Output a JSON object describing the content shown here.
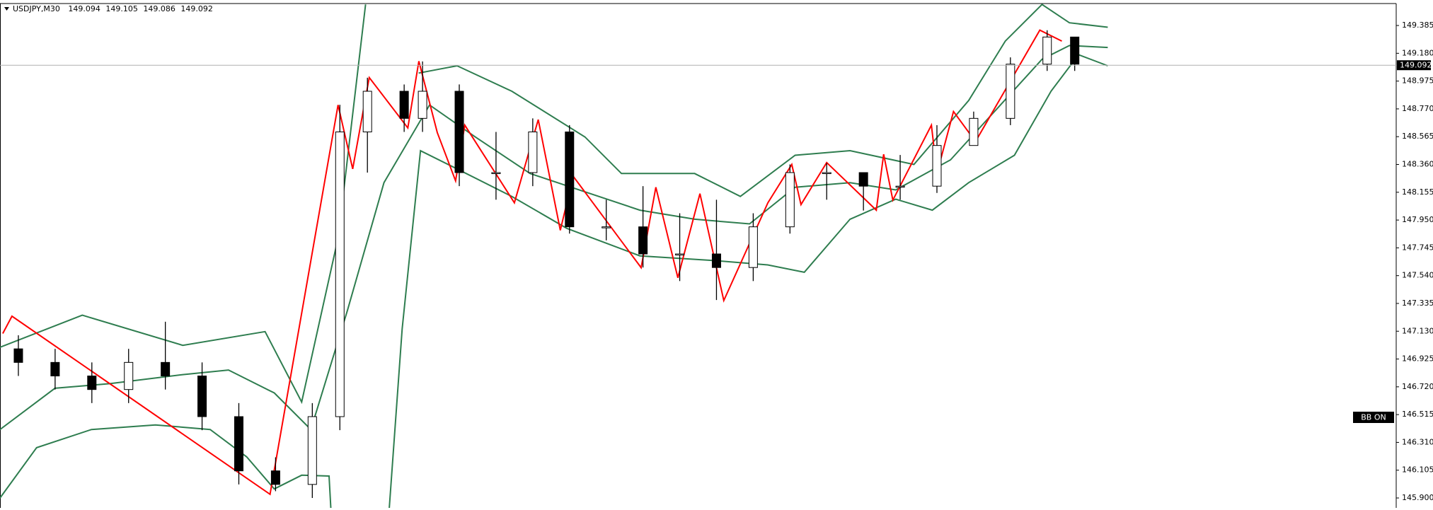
{
  "chart_data": {
    "type": "candlestick",
    "title": "USDJPY,M30",
    "ohlc_header": [
      149.094,
      149.105,
      149.086,
      149.092
    ],
    "current_price": 149.092,
    "annotation": "BB ON",
    "xlim": [
      0,
      76
    ],
    "ylim": [
      145.827,
      149.547
    ],
    "yticks": [
      149.385,
      {
        "value": 149.18,
        "label": "149.180"
      },
      148.975,
      {
        "value": 148.77,
        "label": "148.770"
      },
      148.565,
      {
        "value": 148.36,
        "label": "148.360"
      },
      148.155,
      {
        "value": 147.95,
        "label": "147.950"
      },
      147.745,
      {
        "value": 147.54,
        "label": "147.540"
      },
      147.335,
      {
        "value": 147.13,
        "label": "147.130"
      },
      146.925,
      {
        "value": 146.72,
        "label": "146.720"
      },
      146.515,
      {
        "value": 146.31,
        "label": "146.310"
      },
      146.105,
      {
        "value": 145.9,
        "label": "145.900"
      }
    ],
    "candles": {
      "x": [
        1,
        3,
        5,
        7,
        9,
        11,
        13,
        15,
        17,
        18.5,
        20,
        22,
        23,
        25,
        27,
        29,
        31,
        33,
        35,
        37,
        39,
        41,
        43,
        45,
        47,
        49,
        51,
        53,
        55,
        57,
        58.5
      ],
      "open": [
        147.0,
        146.9,
        146.8,
        146.7,
        146.9,
        146.8,
        146.5,
        146.1,
        146.0,
        146.5,
        148.6,
        148.9,
        148.7,
        148.9,
        148.3,
        148.3,
        148.6,
        147.9,
        147.9,
        147.7,
        147.7,
        147.6,
        147.9,
        148.3,
        148.3,
        148.2,
        148.2,
        148.5,
        148.7,
        149.1,
        149.3
      ],
      "high": [
        147.1,
        147.0,
        146.9,
        147.0,
        147.2,
        146.9,
        146.6,
        146.2,
        146.6,
        148.8,
        149.0,
        148.95,
        149.12,
        148.95,
        148.6,
        148.7,
        148.65,
        148.1,
        148.2,
        148.0,
        148.1,
        148.0,
        148.36,
        148.37,
        148.3,
        148.43,
        148.65,
        148.75,
        149.15,
        149.35,
        149.3
      ],
      "low": [
        146.8,
        146.7,
        146.6,
        146.6,
        146.7,
        146.4,
        146.0,
        145.95,
        145.9,
        146.4,
        148.3,
        148.6,
        148.6,
        148.2,
        148.1,
        148.2,
        147.85,
        147.8,
        147.6,
        147.5,
        147.36,
        147.5,
        147.85,
        148.1,
        148.02,
        148.1,
        148.15,
        148.5,
        148.65,
        149.05,
        149.05
      ],
      "close": [
        146.9,
        146.8,
        146.7,
        146.9,
        146.8,
        146.5,
        146.1,
        146.0,
        146.5,
        148.6,
        148.9,
        148.7,
        148.9,
        148.3,
        148.3,
        148.6,
        147.9,
        147.9,
        147.7,
        147.7,
        147.6,
        147.9,
        148.3,
        148.3,
        148.2,
        148.2,
        148.5,
        148.7,
        149.1,
        149.3,
        149.1
      ]
    },
    "lines": [
      {
        "color": "#2e7d4f",
        "x": [
          0,
          4.48,
          9.95,
          14.43,
          16.42,
          18.41,
          19.9,
          21.4,
          22.79,
          24.88,
          27.86,
          31.84,
          33.83,
          37.81,
          40.3,
          43.28,
          46.27,
          49.75,
          52.73,
          54.72,
          56.72,
          58.21,
          60.3
        ],
        "values": [
          147.012,
          147.248,
          147.026,
          147.127,
          146.608,
          147.821,
          149.54,
          null,
          149.034,
          149.088,
          148.9,
          148.563,
          148.293,
          148.293,
          148.124,
          148.428,
          148.462,
          148.36,
          148.832,
          149.27,
          149.54,
          149.405,
          149.372
        ]
      },
      {
        "color": "#2e7d4f",
        "x": [
          0,
          2.99,
          5.97,
          9.95,
          12.44,
          14.93,
          16.92,
          18.91,
          20.9,
          23.38,
          25.87,
          28.86,
          31.84,
          34.83,
          37.81,
          40.8,
          43.28,
          46.27,
          48.76,
          51.74,
          54.23,
          56.72,
          58.21,
          60.3
        ],
        "values": [
          146.405,
          146.709,
          146.743,
          146.81,
          146.844,
          146.675,
          146.405,
          147.282,
          148.226,
          148.799,
          148.563,
          148.293,
          148.158,
          148.023,
          147.956,
          147.922,
          148.192,
          148.226,
          148.172,
          148.394,
          148.765,
          149.136,
          149.237,
          149.223
        ]
      },
      {
        "color": "#2e7d4f",
        "x": [
          0,
          1.99,
          4.98,
          8.46,
          11.44,
          13.43,
          14.93,
          16.42,
          17.91,
          18.01,
          19.5,
          21.19,
          21.89,
          22.89,
          24.88,
          27.86,
          30.85,
          34.83,
          38.81,
          41.79,
          43.78,
          46.27,
          48.76,
          50.75,
          52.73,
          55.22,
          57.21,
          58.71,
          60.3
        ],
        "values": [
          145.9,
          146.271,
          146.405,
          146.439,
          146.405,
          146.203,
          145.967,
          146.068,
          146.062,
          145.826,
          null,
          145.826,
          147.147,
          148.461,
          148.327,
          148.124,
          147.889,
          147.686,
          147.652,
          147.619,
          147.565,
          147.956,
          148.104,
          148.023,
          148.226,
          148.428,
          148.9,
          149.169,
          149.088
        ]
      },
      {
        "color": "#ff0000",
        "x": [
          0.15,
          0.65,
          14.7,
          18.4,
          19.2,
          20.1,
          22.2,
          22.8,
          23.8,
          24.8,
          25.3,
          28.0,
          29.3,
          30.5,
          31.2,
          34.9,
          35.7,
          36.9,
          38.1,
          39.4,
          41.8,
          43.1,
          43.6,
          45.0,
          47.7,
          48.1,
          48.6,
          50.7,
          51.0,
          51.9,
          53.1,
          56.6,
          57.8
        ],
        "values": [
          147.113,
          147.241,
          145.927,
          148.799,
          148.327,
          149.001,
          148.63,
          149.122,
          148.596,
          148.239,
          148.65,
          148.077,
          148.691,
          147.875,
          148.273,
          147.599,
          148.192,
          147.524,
          148.145,
          147.356,
          148.077,
          148.36,
          148.064,
          148.374,
          148.023,
          148.435,
          148.097,
          148.65,
          148.293,
          148.751,
          148.529,
          149.351,
          149.27
        ]
      }
    ]
  }
}
